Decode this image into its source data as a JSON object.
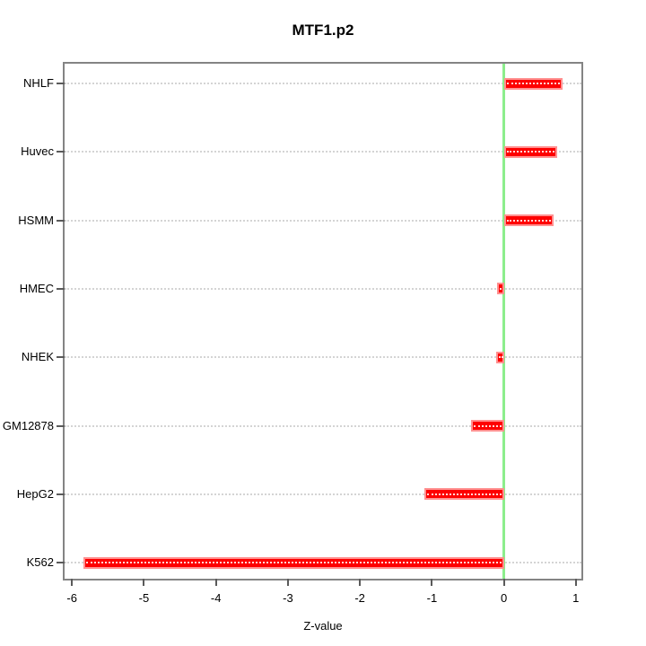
{
  "figure": {
    "title": "MTF1.p2",
    "x_axis_title": "Z-value"
  },
  "chart_data": {
    "type": "bar",
    "orientation": "horizontal",
    "title": "MTF1.p2",
    "xlabel": "Z-value",
    "ylabel": "",
    "categories": [
      "NHLF",
      "Huvec",
      "HSMM",
      "HMEC",
      "NHEK",
      "GM12878",
      "HepG2",
      "K562"
    ],
    "values": [
      0.82,
      0.74,
      0.69,
      -0.1,
      -0.11,
      -0.46,
      -1.11,
      -5.84
    ],
    "xlim": [
      -6,
      1
    ],
    "x_ticks": [
      -6,
      -5,
      -4,
      -3,
      -2,
      -1,
      0,
      1
    ],
    "zero_reference_line": 0,
    "grid": "horizontal-dotted",
    "legend_position": "none",
    "colors": {
      "bar_fill": "#fe0000",
      "bar_border": "#ff9090",
      "bar_inner_dots": "#ffffff",
      "zero_line": "#8cee8c",
      "grid_line": "#d4d4d4",
      "box_border": "#848484",
      "tick": "#5a5a5a",
      "text": "#000000",
      "background": "#ffffff"
    }
  }
}
